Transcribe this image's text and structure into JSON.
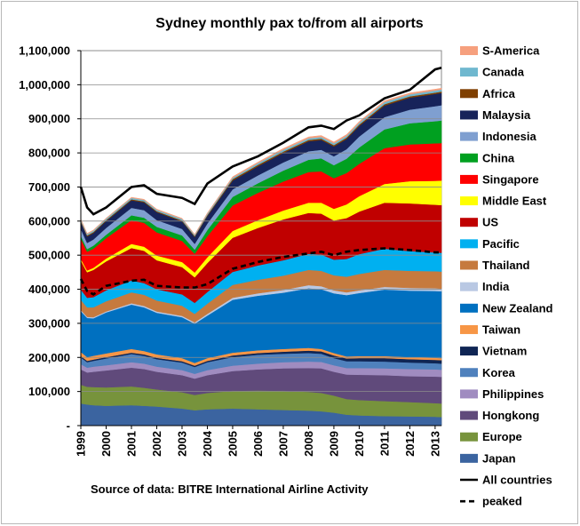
{
  "chart_data": {
    "type": "area",
    "stacked": true,
    "title": "Sydney monthly pax to/from all airports",
    "source": "Source of data: BITRE International Airline Activity",
    "xlabel": "",
    "ylabel": "",
    "x_ticks": [
      "1999",
      "2000",
      "2001",
      "2002",
      "2003",
      "2004",
      "2005",
      "2006",
      "2007",
      "2008",
      "2009",
      "2010",
      "2011",
      "2012",
      "2013"
    ],
    "y_ticks": [
      "-",
      "100,000",
      "200,000",
      "300,000",
      "400,000",
      "500,000",
      "600,000",
      "700,000",
      "800,000",
      "900,000",
      "1,000,000",
      "1,100,000"
    ],
    "ylim": [
      0,
      1100000
    ],
    "x_range": [
      1999,
      2013.25
    ],
    "x": [
      1999,
      1999.25,
      1999.5,
      2000,
      2001,
      2001.5,
      2002,
      2003,
      2003.5,
      2004,
      2005,
      2006,
      2007,
      2008,
      2008.5,
      2009,
      2009.5,
      2010,
      2011,
      2012,
      2013,
      2013.25
    ],
    "series": [
      {
        "name": "Japan",
        "color": "#3b64a0",
        "values": [
          65000,
          62000,
          60000,
          58000,
          60000,
          58000,
          56000,
          50000,
          45000,
          48000,
          50000,
          48000,
          46000,
          44000,
          42000,
          38000,
          32000,
          30000,
          28000,
          27000,
          26000,
          25000
        ]
      },
      {
        "name": "Europe",
        "color": "#77933c",
        "values": [
          55000,
          52000,
          53000,
          54000,
          55000,
          53000,
          50000,
          48000,
          45000,
          48000,
          52000,
          55000,
          56000,
          55000,
          54000,
          50000,
          46000,
          45000,
          44000,
          42000,
          40000,
          40000
        ]
      },
      {
        "name": "Hongkong",
        "color": "#604a7b",
        "values": [
          45000,
          42000,
          45000,
          50000,
          55000,
          55000,
          52000,
          50000,
          48000,
          52000,
          58000,
          62000,
          66000,
          70000,
          72000,
          70000,
          72000,
          74000,
          76000,
          76000,
          78000,
          78000
        ]
      },
      {
        "name": "Philippines",
        "color": "#a08cc0",
        "values": [
          15000,
          14000,
          15000,
          15000,
          16000,
          16000,
          15000,
          15000,
          14000,
          15000,
          16000,
          17000,
          18000,
          19000,
          19000,
          19000,
          19000,
          20000,
          20000,
          21000,
          21000,
          21000
        ]
      },
      {
        "name": "Korea",
        "color": "#4f81bd",
        "values": [
          20000,
          16000,
          17000,
          20000,
          24000,
          23000,
          22000,
          22000,
          20000,
          23000,
          25000,
          26000,
          25000,
          25000,
          24000,
          21000,
          20000,
          20000,
          20000,
          19000,
          18000,
          18000
        ]
      },
      {
        "name": "Vietnam",
        "color": "#0f2554",
        "values": [
          4000,
          4000,
          4000,
          4000,
          4000,
          4000,
          4000,
          4000,
          4000,
          4000,
          5000,
          5000,
          6000,
          7000,
          7000,
          8000,
          8000,
          9000,
          10000,
          10000,
          10000,
          10000
        ]
      },
      {
        "name": "Taiwan",
        "color": "#f79646",
        "values": [
          12000,
          11000,
          11000,
          11000,
          11000,
          10000,
          10000,
          9000,
          8000,
          8000,
          8000,
          8000,
          8000,
          8000,
          7000,
          7000,
          6000,
          6000,
          6000,
          6000,
          6000,
          6000
        ]
      },
      {
        "name": "New Zealand",
        "color": "#0070c0",
        "values": [
          120000,
          115000,
          110000,
          120000,
          130000,
          128000,
          122000,
          120000,
          115000,
          125000,
          155000,
          160000,
          165000,
          175000,
          175000,
          175000,
          180000,
          185000,
          195000,
          195000,
          196000,
          196000
        ]
      },
      {
        "name": "India",
        "color": "#b9c8e3",
        "values": [
          3000,
          3000,
          3000,
          3000,
          4000,
          4000,
          4000,
          4000,
          4000,
          5000,
          6000,
          7000,
          8000,
          9000,
          9000,
          9000,
          8000,
          8000,
          8000,
          8000,
          8000,
          8000
        ]
      },
      {
        "name": "Thailand",
        "color": "#c67a3e",
        "values": [
          30000,
          28000,
          29000,
          30000,
          32000,
          33000,
          32000,
          30000,
          25000,
          30000,
          38000,
          40000,
          42000,
          45000,
          45000,
          44000,
          46000,
          48000,
          50000,
          50000,
          50000,
          50000
        ]
      },
      {
        "name": "Pacific",
        "color": "#00b0f0",
        "values": [
          30000,
          28000,
          30000,
          32000,
          35000,
          34000,
          33000,
          33000,
          32000,
          34000,
          38000,
          42000,
          45000,
          47000,
          48000,
          46000,
          52000,
          58000,
          62000,
          58000,
          55000,
          55000
        ]
      },
      {
        "name": "US",
        "color": "#c00000",
        "values": [
          85000,
          75000,
          80000,
          85000,
          95000,
          95000,
          85000,
          80000,
          75000,
          85000,
          100000,
          110000,
          120000,
          120000,
          120000,
          115000,
          120000,
          125000,
          135000,
          140000,
          140000,
          140000
        ]
      },
      {
        "name": "Middle East",
        "color": "#ffff00",
        "values": [
          5000,
          5000,
          6000,
          8000,
          12000,
          12000,
          14000,
          15000,
          14000,
          17000,
          20000,
          23000,
          26000,
          30000,
          32000,
          34000,
          40000,
          45000,
          55000,
          65000,
          70000,
          72000
        ]
      },
      {
        "name": "Singapore",
        "color": "#ff0000",
        "values": [
          60000,
          55000,
          56000,
          60000,
          70000,
          70000,
          68000,
          62000,
          55000,
          62000,
          75000,
          80000,
          85000,
          90000,
          92000,
          90000,
          92000,
          95000,
          105000,
          108000,
          110000,
          110000
        ]
      },
      {
        "name": "China",
        "color": "#00a020",
        "values": [
          8000,
          8000,
          9000,
          10000,
          14000,
          15000,
          16000,
          16000,
          12000,
          18000,
          25000,
          28000,
          32000,
          36000,
          38000,
          38000,
          42000,
          48000,
          55000,
          62000,
          65000,
          66000
        ]
      },
      {
        "name": "Indonesia",
        "color": "#7f9fd0",
        "values": [
          20000,
          18000,
          18000,
          20000,
          22000,
          22000,
          20000,
          19000,
          17000,
          19000,
          22000,
          23000,
          24000,
          25000,
          25000,
          26000,
          28000,
          32000,
          36000,
          40000,
          44000,
          45000
        ]
      },
      {
        "name": "Malaysia",
        "color": "#17235a",
        "values": [
          20000,
          19000,
          19000,
          20000,
          22000,
          23000,
          23000,
          22000,
          20000,
          22000,
          26000,
          27000,
          28000,
          29000,
          29000,
          29000,
          30000,
          31000,
          34000,
          35000,
          36000,
          36000
        ]
      },
      {
        "name": "Africa",
        "color": "#7f3f00",
        "values": [
          3000,
          3000,
          3000,
          3000,
          3000,
          3000,
          3000,
          3000,
          3000,
          3000,
          4000,
          4000,
          4000,
          4000,
          4000,
          4000,
          4000,
          4000,
          4000,
          4000,
          4000,
          4000
        ]
      },
      {
        "name": "Canada",
        "color": "#6fb8cf",
        "values": [
          4000,
          4000,
          4000,
          4000,
          4000,
          4000,
          4000,
          4000,
          3000,
          4000,
          4000,
          5000,
          5000,
          5000,
          5000,
          5000,
          5000,
          5000,
          6000,
          6000,
          6000,
          6000
        ]
      },
      {
        "name": "S-America",
        "color": "#f6a07e",
        "values": [
          2000,
          2000,
          2000,
          2000,
          2000,
          2000,
          2000,
          2000,
          2000,
          2000,
          3000,
          3000,
          4000,
          4000,
          4000,
          4000,
          4000,
          4000,
          4000,
          4000,
          4000,
          4000
        ]
      }
    ],
    "lines": [
      {
        "name": "All countries",
        "style": "solid",
        "color": "#000000",
        "values": [
          700000,
          640000,
          620000,
          640000,
          700000,
          705000,
          680000,
          668000,
          650000,
          710000,
          760000,
          790000,
          830000,
          875000,
          880000,
          870000,
          895000,
          910000,
          960000,
          985000,
          1045000,
          1050000
        ]
      },
      {
        "name": "peaked",
        "style": "dashed",
        "color": "#000000",
        "values": [
          430000,
          395000,
          385000,
          410000,
          425000,
          428000,
          410000,
          405000,
          405000,
          415000,
          460000,
          480000,
          495000,
          505000,
          510000,
          500000,
          510000,
          515000,
          520000,
          515000,
          508000,
          508000
        ]
      }
    ],
    "legend_order": [
      "S-America",
      "Canada",
      "Africa",
      "Malaysia",
      "Indonesia",
      "China",
      "Singapore",
      "Middle East",
      "US",
      "Pacific",
      "Thailand",
      "India",
      "New Zealand",
      "Taiwan",
      "Vietnam",
      "Korea",
      "Philippines",
      "Hongkong",
      "Europe",
      "Japan",
      "All countries",
      "peaked"
    ],
    "legend_position": "right",
    "grid": true
  }
}
